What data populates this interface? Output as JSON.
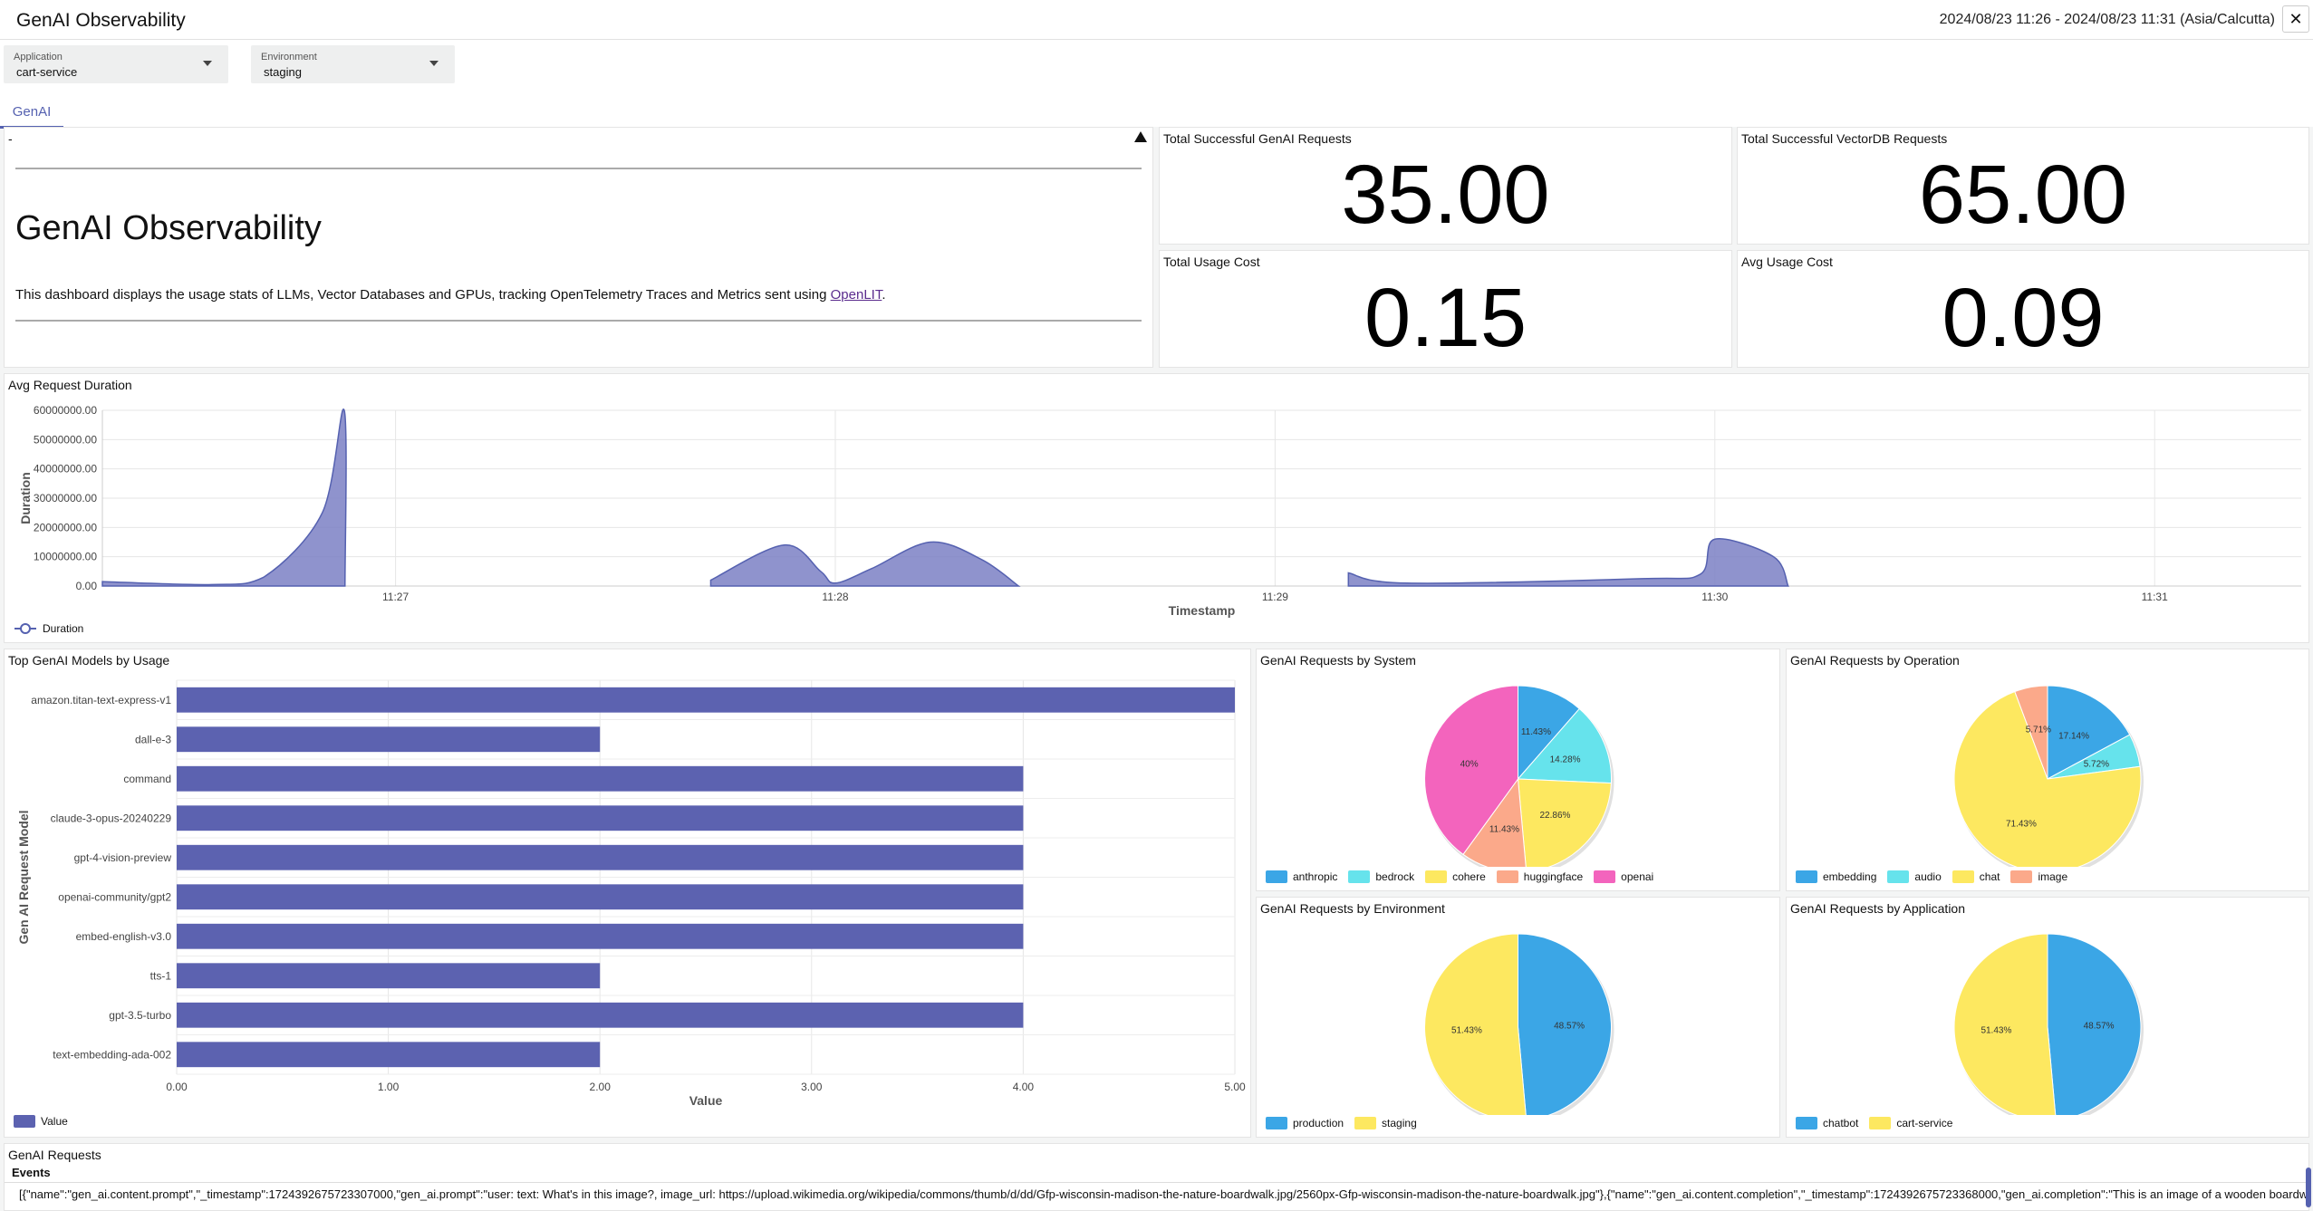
{
  "header": {
    "title": "GenAI Observability",
    "time_range": "2024/08/23 11:26 - 2024/08/23 11:31 (Asia/Calcutta)",
    "close_label": "✕"
  },
  "filters": [
    {
      "label": "Application",
      "value": "cart-service"
    },
    {
      "label": "Environment",
      "value": "staging"
    }
  ],
  "tabs": [
    {
      "label": "GenAI"
    }
  ],
  "markdown": {
    "dash": "-",
    "heading": "GenAI Observability",
    "text": "This dashboard displays the usage stats of LLMs, Vector Databases and GPUs, tracking OpenTelemetry Traces and Metrics sent using ",
    "link": "OpenLIT",
    "suffix": "."
  },
  "metrics": [
    {
      "title": "Total Successful GenAI Requests",
      "value": "35.00"
    },
    {
      "title": "Total Successful VectorDB Requests",
      "value": "65.00"
    },
    {
      "title": "Total Usage Cost",
      "value": "0.15"
    },
    {
      "title": "Avg Usage Cost",
      "value": "0.09"
    }
  ],
  "duration_panel": {
    "title": "Avg Request Duration",
    "legend": "Duration"
  },
  "models_panel": {
    "title": "Top GenAI Models by Usage",
    "legend": "Value"
  },
  "pies": [
    {
      "title": "GenAI Requests by System"
    },
    {
      "title": "GenAI Requests by Operation"
    },
    {
      "title": "GenAI Requests by Environment"
    },
    {
      "title": "GenAI Requests by Application"
    }
  ],
  "events_panel": {
    "title": "GenAI Requests",
    "column": "Events",
    "row_text": "[{\"name\":\"gen_ai.content.prompt\",\"_timestamp\":1724392675723307000,\"gen_ai.prompt\":\"user: text: What's in this image?, image_url: https://upload.wikimedia.org/wikipedia/commons/thumb/d/dd/Gfp-wisconsin-madison-the-nature-boardwalk.jpg/2560px-Gfp-wisconsin-madison-the-nature-boardwalk.jpg\"},{\"name\":\"gen_ai.content.completion\",\"_timestamp\":1724392675723368000,\"gen_ai.completion\":\"This is an image of a wooden boardwalk"
  },
  "colors": {
    "accent": "#5561b0",
    "area": "#7b80c4",
    "bar": "#5c62b0"
  },
  "chart_data": [
    {
      "type": "area",
      "title": "Avg Request Duration",
      "xlabel": "Timestamp",
      "ylabel": "Duration",
      "y_ticks": [
        "0.00",
        "10000000.00",
        "20000000.00",
        "30000000.00",
        "40000000.00",
        "50000000.00",
        "60000000.00"
      ],
      "x_ticks": [
        "11:27",
        "11:28",
        "11:29",
        "11:30",
        "11:31"
      ],
      "ylim": [
        0,
        60000000
      ],
      "series": [
        {
          "name": "Duration",
          "points": [
            [
              "11:26:20",
              1500000
            ],
            [
              "11:26:35",
              500000
            ],
            [
              "11:26:42",
              3000000
            ],
            [
              "11:26:50",
              25000000
            ],
            [
              "11:26:53",
              60000000
            ],
            [
              "11:26:53.1",
              0
            ],
            [
              "11:27:40",
              0
            ],
            [
              "11:27:43",
              2000000
            ],
            [
              "11:27:53",
              14000000
            ],
            [
              "11:27:58",
              5000000
            ],
            [
              "11:28:00",
              1000000
            ],
            [
              "11:28:05",
              6000000
            ],
            [
              "11:28:13",
              15000000
            ],
            [
              "11:28:20",
              9000000
            ],
            [
              "11:28:25",
              0
            ],
            [
              "11:29:10",
              4500000
            ],
            [
              "11:29:18",
              1000000
            ],
            [
              "11:29:50",
              2500000
            ],
            [
              "11:29:58",
              4000000
            ],
            [
              "11:30:00",
              16000000
            ],
            [
              "11:30:08",
              10000000
            ],
            [
              "11:30:10",
              0
            ]
          ]
        }
      ]
    },
    {
      "type": "bar",
      "title": "Top GenAI Models by Usage",
      "xlabel": "Value",
      "ylabel": "Gen AI Request Model",
      "categories": [
        "amazon.titan-text-express-v1",
        "dall-e-3",
        "command",
        "claude-3-opus-20240229",
        "gpt-4-vision-preview",
        "openai-community/gpt2",
        "embed-english-v3.0",
        "tts-1",
        "gpt-3.5-turbo",
        "text-embedding-ada-002"
      ],
      "values": [
        5,
        2,
        4,
        4,
        4,
        4,
        4,
        2,
        4,
        2
      ],
      "x_ticks": [
        "0.00",
        "1.00",
        "2.00",
        "3.00",
        "4.00",
        "5.00"
      ],
      "xlim": [
        0,
        5
      ]
    },
    {
      "type": "pie",
      "title": "GenAI Requests by System",
      "series": [
        {
          "name": "anthropic",
          "value": 11.43,
          "label": "11.43%",
          "color": "#3ba6e6"
        },
        {
          "name": "bedrock",
          "value": 14.28,
          "label": "14.28%",
          "color": "#66e3ec"
        },
        {
          "name": "cohere",
          "value": 22.86,
          "label": "22.86%",
          "color": "#fde860"
        },
        {
          "name": "huggingface",
          "value": 11.43,
          "label": "11.43%",
          "color": "#fba98a"
        },
        {
          "name": "openai",
          "value": 40,
          "label": "40%",
          "color": "#f364bd"
        }
      ]
    },
    {
      "type": "pie",
      "title": "GenAI Requests by Operation",
      "series": [
        {
          "name": "embedding",
          "value": 17.14,
          "label": "17.14%",
          "color": "#3ba6e6"
        },
        {
          "name": "audio",
          "value": 5.72,
          "label": "5.72%",
          "color": "#66e3ec"
        },
        {
          "name": "chat",
          "value": 71.43,
          "label": "71.43%",
          "color": "#fde860"
        },
        {
          "name": "image",
          "value": 5.71,
          "label": "5.71%",
          "color": "#fba98a"
        }
      ]
    },
    {
      "type": "pie",
      "title": "GenAI Requests by Environment",
      "series": [
        {
          "name": "production",
          "value": 48.57,
          "label": "48.57%",
          "color": "#3ba6e6"
        },
        {
          "name": "staging",
          "value": 51.43,
          "label": "51.43%",
          "color": "#fde860"
        }
      ]
    },
    {
      "type": "pie",
      "title": "GenAI Requests by Application",
      "series": [
        {
          "name": "chatbot",
          "value": 48.57,
          "label": "48.57%",
          "color": "#3ba6e6"
        },
        {
          "name": "cart-service",
          "value": 51.43,
          "label": "51.43%",
          "color": "#fde860"
        }
      ]
    }
  ]
}
